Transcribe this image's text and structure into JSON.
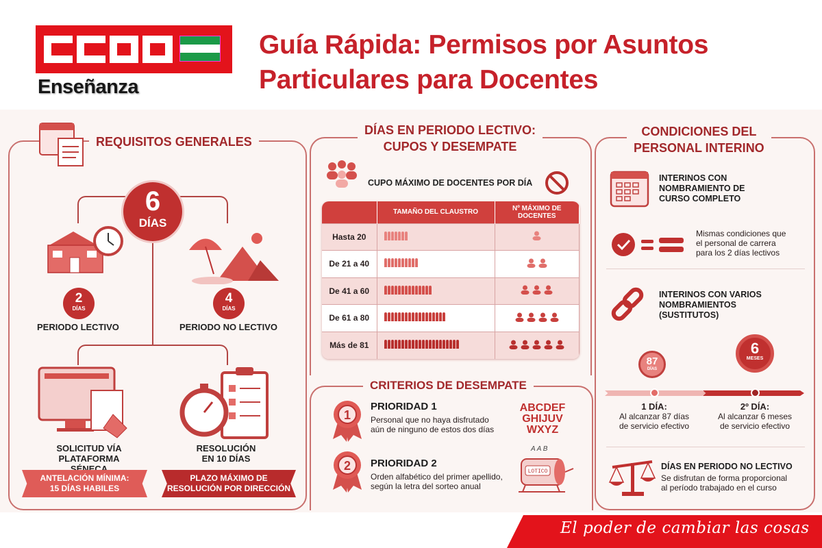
{
  "header": {
    "logo_text": "CCOO",
    "logo_sub": "Enseñanza",
    "title_line1": "Guía Rápida: Permisos por Asuntos",
    "title_line2": "Particulares para Docentes",
    "colors": {
      "brand_red": "#e3131b",
      "flag_green": "#1b9a48",
      "title_red": "#c6212a"
    }
  },
  "requisitos": {
    "heading": "REQUISITOS GENERALES",
    "total_num": "6",
    "total_unit": "DÍAS",
    "lectivo": {
      "num": "2",
      "unit": "DÍAS",
      "label": "PERIODO LECTIVO"
    },
    "no_lectivo": {
      "num": "4",
      "unit": "DÍAS",
      "label": "PERIODO NO LECTIVO"
    },
    "solicitud": {
      "line1": "SOLICITUD VÍA",
      "line2": "PLATAFORMA SÉNECA",
      "ribbon1": "ANTELACIÓN MÍNIMA:",
      "ribbon2": "15 DÍAS HABILES"
    },
    "resolucion": {
      "line1": "RESOLUCIÓN",
      "line2": "EN 10 DÍAS",
      "ribbon1": "PLAZO MÁXIMO DE",
      "ribbon2": "RESOLUCIÓN POR DIRECCIÓN"
    }
  },
  "cupos": {
    "heading1": "DÍAS EN PERIODO LECTIVO:",
    "heading2": "CUPOS Y DESEMPATE",
    "subheading": "CUPO MÁXIMO DE DOCENTES POR DÍA",
    "columns": [
      "",
      "TAMAÑO DEL CLAUSTRO",
      "Nº MÁXIMO DE DOCENTES"
    ],
    "rows": [
      {
        "label": "Hasta 20",
        "max_docentes": 1
      },
      {
        "label": "De 21 a 40",
        "max_docentes": 2
      },
      {
        "label": "De 41 a 60",
        "max_docentes": 3
      },
      {
        "label": "De 61 a 80",
        "max_docentes": 4
      },
      {
        "label": "Más de 81",
        "max_docentes": 5
      }
    ]
  },
  "desempate": {
    "heading": "CRITERIOS DE DESEMPATE",
    "p1": {
      "badge": "1",
      "title": "PRIORIDAD 1",
      "line1": "Personal que no haya disfrutado",
      "line2": "aún de ninguno de estos dos días"
    },
    "p2": {
      "badge": "2",
      "title": "PRIORIDAD 2",
      "line1": "Orden alfabético del primer apellido,",
      "line2": "según la letra del sorteo anual"
    },
    "alphabet": [
      "ABCDEF",
      "GHIJUV",
      "WXYZ"
    ],
    "lottery_label": "LOTICO",
    "lottery_letters": "A A B"
  },
  "interino": {
    "heading1": "CONDICIONES DEL",
    "heading2": "PERSONAL INTERINO",
    "completo": {
      "l1": "INTERINOS CON",
      "l2": "NOMBRAMIENTO DE",
      "l3": "CURSO COMPLETO"
    },
    "mismas": {
      "l1": "Mismas condiciones que",
      "l2": "el personal de carrera",
      "l3": "para los 2 días lectivos"
    },
    "varios": {
      "l1": "INTERINOS CON VARIOS",
      "l2": "NOMBRAMIENTOS",
      "l3": "(SUSTITUTOS)"
    },
    "timer1": {
      "num": "87",
      "unit": "DÍAS"
    },
    "timer2": {
      "num": "6",
      "unit": "MESES"
    },
    "dia1": {
      "title": "1 DÍA:",
      "l1": "Al alcanzar 87 días",
      "l2": "de servicio efectivo"
    },
    "dia2": {
      "title": "2º DÍA:",
      "l1": "Al alcanzar 6 meses",
      "l2": "de servicio efectivo"
    },
    "no_lectivo": {
      "title": "DÍAS EN PERIODO NO LECTIVO",
      "l1": "Se disfrutan de forma proporcional",
      "l2": "al período trabajado en el curso"
    }
  },
  "footer": {
    "slogan": "El poder de cambiar las cosas"
  }
}
